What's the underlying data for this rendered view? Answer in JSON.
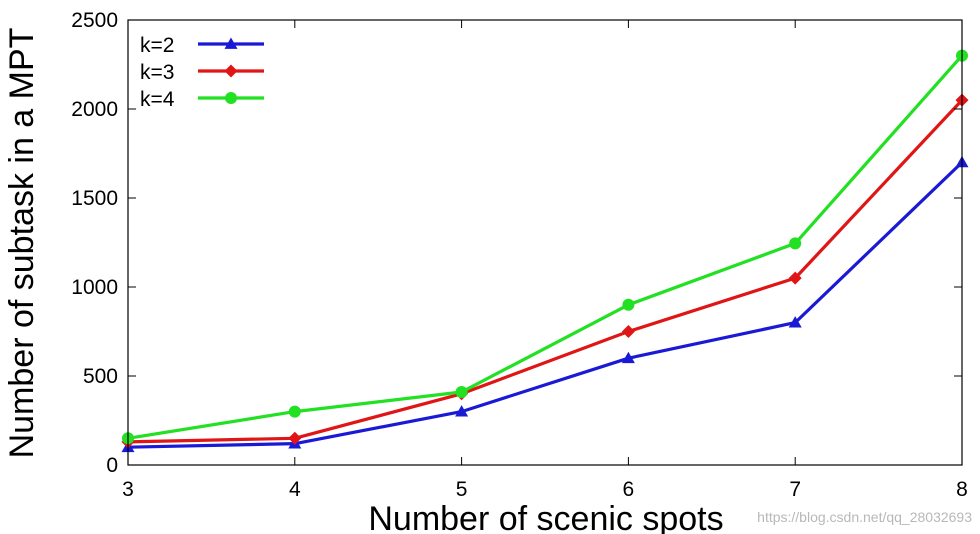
{
  "chart_data": {
    "type": "line",
    "title": "",
    "xlabel": "Number of scenic spots",
    "ylabel": "Number of subtask in a MPT",
    "x": [
      3,
      4,
      5,
      6,
      7,
      8
    ],
    "xlim": [
      3,
      8
    ],
    "ylim": [
      0,
      2500
    ],
    "xticks": [
      3,
      4,
      5,
      6,
      7,
      8
    ],
    "yticks": [
      0,
      500,
      1000,
      1500,
      2000,
      2500
    ],
    "grid": false,
    "legend_position": "top-left",
    "series": [
      {
        "name": "k=2",
        "color": "#1a1ad6",
        "marker": "triangle",
        "values": [
          100,
          120,
          300,
          600,
          800,
          1700
        ]
      },
      {
        "name": "k=3",
        "color": "#e01515",
        "marker": "diamond",
        "values": [
          130,
          150,
          400,
          750,
          1050,
          2050
        ]
      },
      {
        "name": "k=4",
        "color": "#22e022",
        "marker": "circle",
        "values": [
          150,
          300,
          410,
          900,
          1245,
          2300
        ]
      }
    ]
  },
  "watermark": "https://blog.csdn.net/qq_28032693"
}
